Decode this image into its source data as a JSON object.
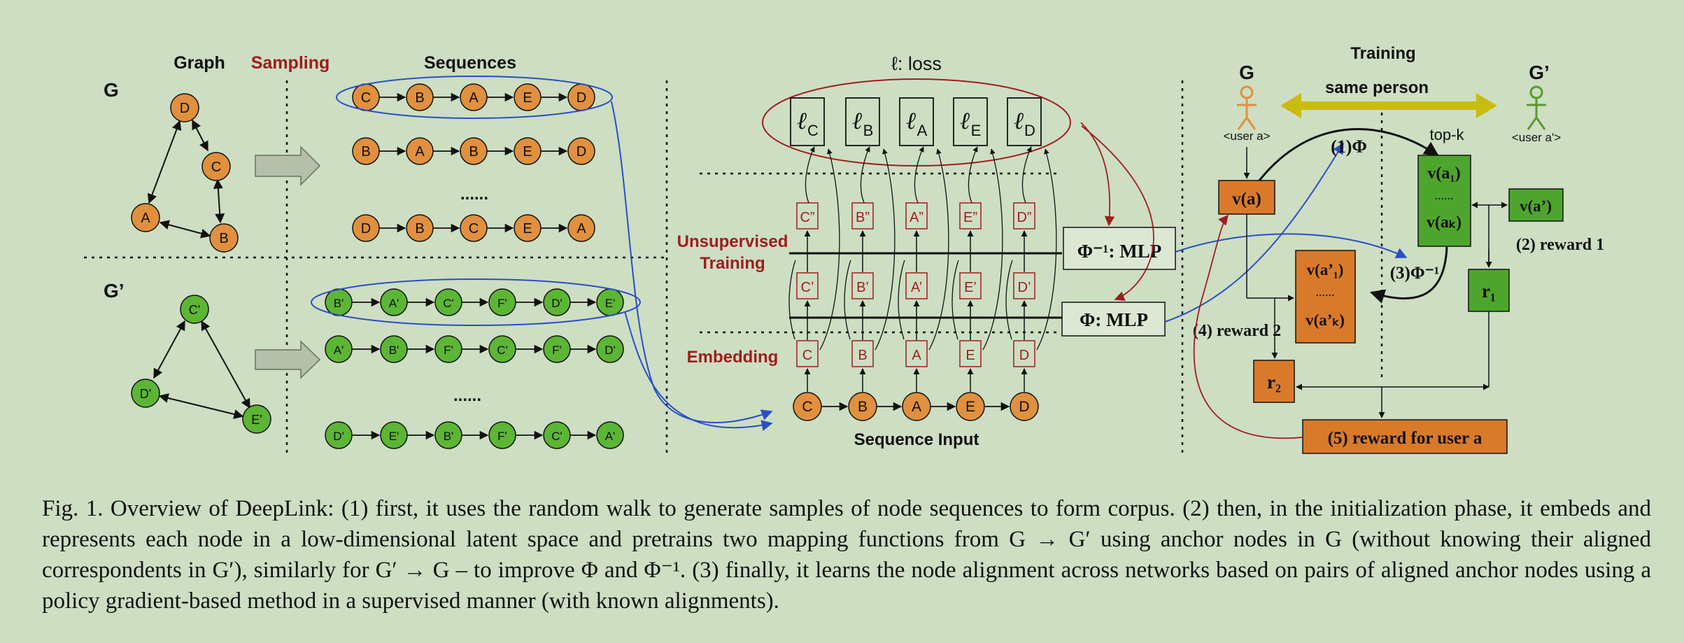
{
  "graph_section": {
    "graph_label": "Graph",
    "sampling_label": "Sampling",
    "sequences_label": "Sequences",
    "g_label": "G",
    "gprime_label": "G’",
    "ellipsis": "......",
    "g_nodes": [
      "D",
      "C",
      "A",
      "B"
    ],
    "gprime_nodes": [
      "C'",
      "D'",
      "E'"
    ],
    "g_sequences": [
      [
        "C",
        "B",
        "A",
        "E",
        "D"
      ],
      [
        "B",
        "A",
        "B",
        "E",
        "D"
      ],
      [
        "D",
        "B",
        "C",
        "E",
        "A"
      ]
    ],
    "gprime_sequences": [
      [
        "B'",
        "A'",
        "C'",
        "F'",
        "D'",
        "E'"
      ],
      [
        "A'",
        "B'",
        "F'",
        "C'",
        "F'",
        "D'"
      ],
      [
        "D'",
        "E'",
        "B'",
        "F'",
        "C'",
        "A'"
      ]
    ]
  },
  "embedding_section": {
    "loss_label": "ℓ: loss",
    "loss_subscripts": [
      "C",
      "B",
      "A",
      "E",
      "D"
    ],
    "unsupervised_label": [
      "Unsupervised",
      "Training"
    ],
    "embedding_label": "Embedding",
    "upper_boxes": [
      "C”",
      "B”",
      "A”",
      "E”",
      "D”"
    ],
    "middle_boxes": [
      "C’",
      "B’",
      "A’",
      "E’",
      "D’"
    ],
    "lower_boxes": [
      "C",
      "B",
      "A",
      "E",
      "D"
    ],
    "input_nodes": [
      "C",
      "B",
      "A",
      "E",
      "D"
    ],
    "sequence_input_label": "Sequence Input",
    "mlp_inverse_label": "Φ⁻¹: MLP",
    "mlp_label": "Φ: MLP"
  },
  "training_section": {
    "title": "Training",
    "same_person_label": "same person",
    "g_label": "G",
    "gprime_label": "G’",
    "user_a": "<user a>",
    "user_a_prime": "<user a'>",
    "step1": "(1)Φ",
    "topk_label": "top-k",
    "va": "v(a)",
    "va1": "v(a₁)",
    "vak": "v(aₖ)",
    "va_prime": "v(a’)",
    "va1_prime": "v(a’₁)",
    "vak_prime": "v(a’ₖ)",
    "dots": "......",
    "reward1": "(2) reward 1",
    "step3": "(3)Φ⁻¹",
    "reward2": "(4) reward 2",
    "r1": "r₁",
    "r2": "r₂",
    "reward_user": "(5) reward for user a"
  },
  "caption": "Fig. 1.  Overview of DeepLink: (1) first, it uses the random walk to generate samples of node sequences to form corpus. (2) then, in the initialization phase, it embeds and represents each node in a low-dimensional latent space and pretrains two mapping functions from G → G′ using anchor nodes in G (without knowing their aligned correspondents in G′), similarly for G′ → G – to improve Φ and Φ⁻¹. (3) finally, it learns the node alignment across networks based on pairs of aligned anchor nodes using a policy gradient-based method in a supervised manner (with known alignments).",
  "colors": {
    "background": "#cddec3",
    "orange_node": "#e0903e",
    "green_node": "#5cb535",
    "dark_red": "#a01d1d",
    "blue_ellipse": "#2a4fc4",
    "olive_arrow": "#c8bc10",
    "box_orange": "#d97a2a",
    "box_green": "#4ea52e"
  }
}
